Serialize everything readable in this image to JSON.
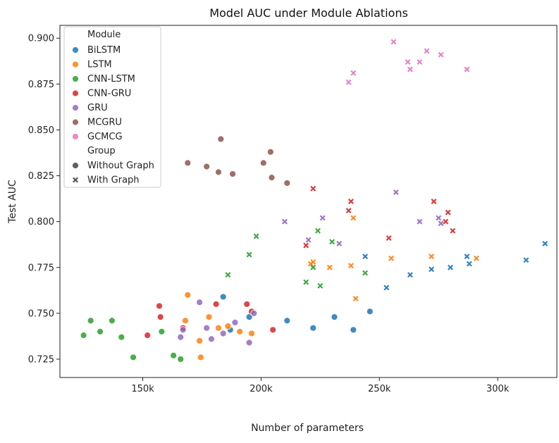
{
  "chart_data": {
    "type": "scatter",
    "title": "Model AUC under Module Ablations",
    "xlabel": "Number of parameters",
    "ylabel": "Test AUC",
    "xlim": [
      115000,
      325000
    ],
    "ylim": [
      0.715,
      0.907
    ],
    "xticks": [
      150000,
      200000,
      250000,
      300000
    ],
    "xtick_labels": [
      "150k",
      "200k",
      "250k",
      "300k"
    ],
    "yticks": [
      0.725,
      0.75,
      0.775,
      0.8,
      0.825,
      0.85,
      0.875,
      0.9
    ],
    "ytick_labels": [
      "0.725",
      "0.750",
      "0.775",
      "0.800",
      "0.825",
      "0.850",
      "0.875",
      "0.900"
    ],
    "grid": false,
    "legend": {
      "position": "top-left",
      "module_title": "Module",
      "group_title": "Group",
      "groups": [
        {
          "name": "Without Graph",
          "marker": "circle"
        },
        {
          "name": "With Graph",
          "marker": "x"
        }
      ]
    },
    "series": [
      {
        "name": "BiLSTM",
        "color": "#1f77b4",
        "without_graph": [
          [
            184000,
            0.759
          ],
          [
            187000,
            0.741
          ],
          [
            195000,
            0.748
          ],
          [
            211000,
            0.746
          ],
          [
            222000,
            0.742
          ],
          [
            231000,
            0.748
          ],
          [
            239000,
            0.741
          ],
          [
            246000,
            0.751
          ]
        ],
        "with_graph": [
          [
            244000,
            0.781
          ],
          [
            253000,
            0.764
          ],
          [
            263000,
            0.771
          ],
          [
            272000,
            0.774
          ],
          [
            280000,
            0.775
          ],
          [
            287000,
            0.781
          ],
          [
            288000,
            0.777
          ],
          [
            312000,
            0.779
          ],
          [
            320000,
            0.788
          ]
        ]
      },
      {
        "name": "LSTM",
        "color": "#ff7f0e",
        "without_graph": [
          [
            168000,
            0.746
          ],
          [
            169000,
            0.76
          ],
          [
            174000,
            0.735
          ],
          [
            174500,
            0.726
          ],
          [
            178000,
            0.748
          ],
          [
            182000,
            0.742
          ],
          [
            186000,
            0.743
          ],
          [
            191000,
            0.74
          ],
          [
            196000,
            0.739
          ]
        ],
        "with_graph": [
          [
            221000,
            0.777
          ],
          [
            222000,
            0.778
          ],
          [
            229000,
            0.775
          ],
          [
            238000,
            0.776
          ],
          [
            239000,
            0.802
          ],
          [
            240000,
            0.758
          ],
          [
            255000,
            0.78
          ],
          [
            272000,
            0.781
          ],
          [
            291000,
            0.78
          ]
        ]
      },
      {
        "name": "CNN-LSTM",
        "color": "#2ca02c",
        "without_graph": [
          [
            125000,
            0.738
          ],
          [
            128000,
            0.746
          ],
          [
            132000,
            0.74
          ],
          [
            137000,
            0.746
          ],
          [
            141000,
            0.737
          ],
          [
            146000,
            0.726
          ],
          [
            158000,
            0.74
          ],
          [
            163000,
            0.727
          ],
          [
            166000,
            0.725
          ]
        ],
        "with_graph": [
          [
            186000,
            0.771
          ],
          [
            195000,
            0.782
          ],
          [
            198000,
            0.792
          ],
          [
            219000,
            0.767
          ],
          [
            222000,
            0.775
          ],
          [
            224000,
            0.795
          ],
          [
            225000,
            0.765
          ],
          [
            230000,
            0.789
          ],
          [
            244000,
            0.772
          ]
        ]
      },
      {
        "name": "CNN-GRU",
        "color": "#d62728",
        "without_graph": [
          [
            152000,
            0.738
          ],
          [
            157000,
            0.754
          ],
          [
            157500,
            0.748
          ],
          [
            167000,
            0.742
          ],
          [
            181000,
            0.755
          ],
          [
            194000,
            0.755
          ],
          [
            196000,
            0.751
          ],
          [
            205000,
            0.741
          ]
        ],
        "with_graph": [
          [
            219000,
            0.787
          ],
          [
            222000,
            0.818
          ],
          [
            237000,
            0.806
          ],
          [
            238000,
            0.811
          ],
          [
            254000,
            0.791
          ],
          [
            273000,
            0.811
          ],
          [
            278000,
            0.8
          ],
          [
            279000,
            0.805
          ],
          [
            281000,
            0.795
          ]
        ]
      },
      {
        "name": "GRU",
        "color": "#9467bd",
        "without_graph": [
          [
            166000,
            0.737
          ],
          [
            167000,
            0.741
          ],
          [
            174000,
            0.756
          ],
          [
            177000,
            0.742
          ],
          [
            179000,
            0.736
          ],
          [
            184000,
            0.739
          ],
          [
            189000,
            0.745
          ],
          [
            195000,
            0.734
          ],
          [
            197000,
            0.75
          ]
        ],
        "with_graph": [
          [
            210000,
            0.8
          ],
          [
            220000,
            0.79
          ],
          [
            226000,
            0.802
          ],
          [
            233000,
            0.788
          ],
          [
            257000,
            0.816
          ],
          [
            267000,
            0.8
          ],
          [
            275000,
            0.802
          ],
          [
            276000,
            0.799
          ]
        ]
      },
      {
        "name": "MCGRU",
        "color": "#8c564b",
        "without_graph": [
          [
            169000,
            0.832
          ],
          [
            177000,
            0.83
          ],
          [
            182000,
            0.827
          ],
          [
            183000,
            0.845
          ],
          [
            188000,
            0.826
          ],
          [
            201000,
            0.832
          ],
          [
            204000,
            0.838
          ],
          [
            204500,
            0.824
          ],
          [
            211000,
            0.821
          ]
        ],
        "with_graph": []
      },
      {
        "name": "GCMCG",
        "color": "#e377c2",
        "without_graph": [],
        "with_graph": [
          [
            237000,
            0.876
          ],
          [
            239000,
            0.881
          ],
          [
            256000,
            0.898
          ],
          [
            262000,
            0.887
          ],
          [
            263000,
            0.883
          ],
          [
            267000,
            0.887
          ],
          [
            270000,
            0.893
          ],
          [
            276000,
            0.891
          ],
          [
            287000,
            0.883
          ]
        ]
      }
    ]
  }
}
